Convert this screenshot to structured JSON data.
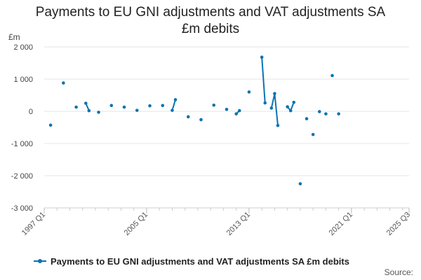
{
  "chart_data": {
    "type": "line",
    "title_line1": "Payments to EU GNI adjustments and VAT adjustments SA",
    "title_line2": "£m debits",
    "ylabel": "£m",
    "xlabel": "",
    "ylim": [
      -3000,
      2000
    ],
    "y_ticks": [
      2000,
      1000,
      0,
      -1000,
      -2000,
      -3000
    ],
    "y_tick_labels": [
      "2 000",
      "1 000",
      "0",
      "-1 000",
      "-2 000",
      "-3 000"
    ],
    "x_range": [
      1997.0,
      2025.5
    ],
    "x_ticks": [
      1997.0,
      2005.0,
      2013.0,
      2021.0,
      2025.5
    ],
    "x_tick_labels": [
      "1997 Q1",
      "2005 Q1",
      "2013 Q1",
      "2021 Q1",
      "2025 Q3"
    ],
    "grid": true,
    "series": [
      {
        "name": "Payments to EU GNI adjustments and VAT adjustments SA £m debits",
        "color": "#0b73b3",
        "points": [
          {
            "x": 1997.5,
            "y": -430
          },
          {
            "x": 1998.5,
            "y": 880
          },
          {
            "x": 1999.5,
            "y": 130
          },
          {
            "x": 2000.25,
            "y": 250
          },
          {
            "x": 2000.5,
            "y": 20
          },
          {
            "x": 2001.25,
            "y": -30
          },
          {
            "x": 2002.25,
            "y": 180
          },
          {
            "x": 2003.25,
            "y": 130
          },
          {
            "x": 2004.25,
            "y": 30
          },
          {
            "x": 2005.25,
            "y": 170
          },
          {
            "x": 2006.25,
            "y": 180
          },
          {
            "x": 2007.0,
            "y": 30
          },
          {
            "x": 2007.25,
            "y": 360
          },
          {
            "x": 2008.25,
            "y": -170
          },
          {
            "x": 2009.25,
            "y": -260
          },
          {
            "x": 2010.25,
            "y": 190
          },
          {
            "x": 2011.25,
            "y": 60
          },
          {
            "x": 2012.0,
            "y": -80
          },
          {
            "x": 2012.25,
            "y": 20
          },
          {
            "x": 2013.0,
            "y": 600
          },
          {
            "x": 2014.0,
            "y": 1680
          },
          {
            "x": 2014.25,
            "y": 260
          },
          {
            "x": 2014.75,
            "y": 100
          },
          {
            "x": 2015.0,
            "y": 550
          },
          {
            "x": 2015.25,
            "y": -440
          },
          {
            "x": 2016.0,
            "y": 140
          },
          {
            "x": 2016.25,
            "y": 20
          },
          {
            "x": 2016.5,
            "y": 280
          },
          {
            "x": 2017.0,
            "y": -2250
          },
          {
            "x": 2017.5,
            "y": -230
          },
          {
            "x": 2018.0,
            "y": -720
          },
          {
            "x": 2018.5,
            "y": -10
          },
          {
            "x": 2019.0,
            "y": -80
          },
          {
            "x": 2019.5,
            "y": 1110
          },
          {
            "x": 2020.0,
            "y": -80
          }
        ]
      }
    ],
    "legend": {
      "position": "bottom-left",
      "label": "Payments to EU GNI adjustments and VAT adjustments SA £m debits"
    },
    "source_label": "Source:"
  }
}
